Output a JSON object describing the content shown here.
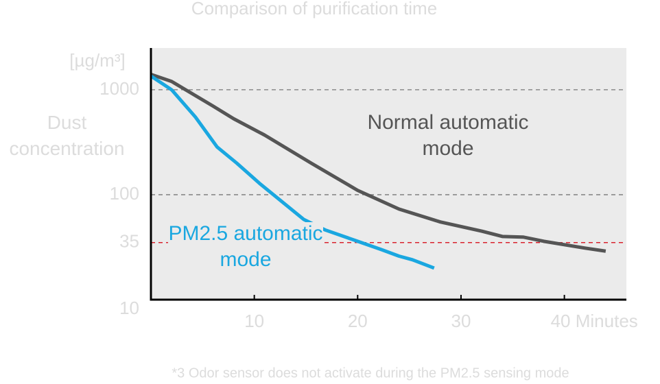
{
  "chart_data": {
    "type": "line",
    "title": "Comparison of purification time",
    "y_unit": "[µg/m³]",
    "y_label": "Dust concentration",
    "footnote": "*3 Odor sensor does not activate during the PM2.5 sensing mode",
    "ylog": true,
    "ylim": [
      10,
      2500
    ],
    "yticks": [
      10,
      35,
      100,
      1000
    ],
    "xlim": [
      0,
      46
    ],
    "xticks": [
      10,
      20,
      30,
      {
        "value": 40,
        "label": "40 Minutes"
      }
    ],
    "reference_line": {
      "value": 35,
      "color": "#d9232e"
    },
    "grid": true,
    "series": [
      {
        "name": "Normal automatic mode",
        "color": "#555555",
        "x": [
          0,
          2,
          6,
          8,
          11,
          15.5,
          20,
          24,
          28,
          32,
          34,
          36,
          38,
          42,
          44
        ],
        "values": [
          1400,
          1200,
          700,
          530,
          370,
          200,
          110,
          73,
          55,
          45,
          40,
          39.5,
          36,
          31,
          29
        ]
      },
      {
        "name": "PM2.5 automatic mode",
        "color": "#1aa7e0",
        "x": [
          0,
          2,
          4.3,
          6.4,
          8.3,
          10.6,
          14.8,
          16.9,
          20,
          22.3,
          24,
          25.3,
          27.4
        ],
        "values": [
          1350,
          1000,
          550,
          285,
          200,
          126,
          58,
          46,
          36,
          30,
          26,
          24,
          20
        ]
      }
    ]
  }
}
